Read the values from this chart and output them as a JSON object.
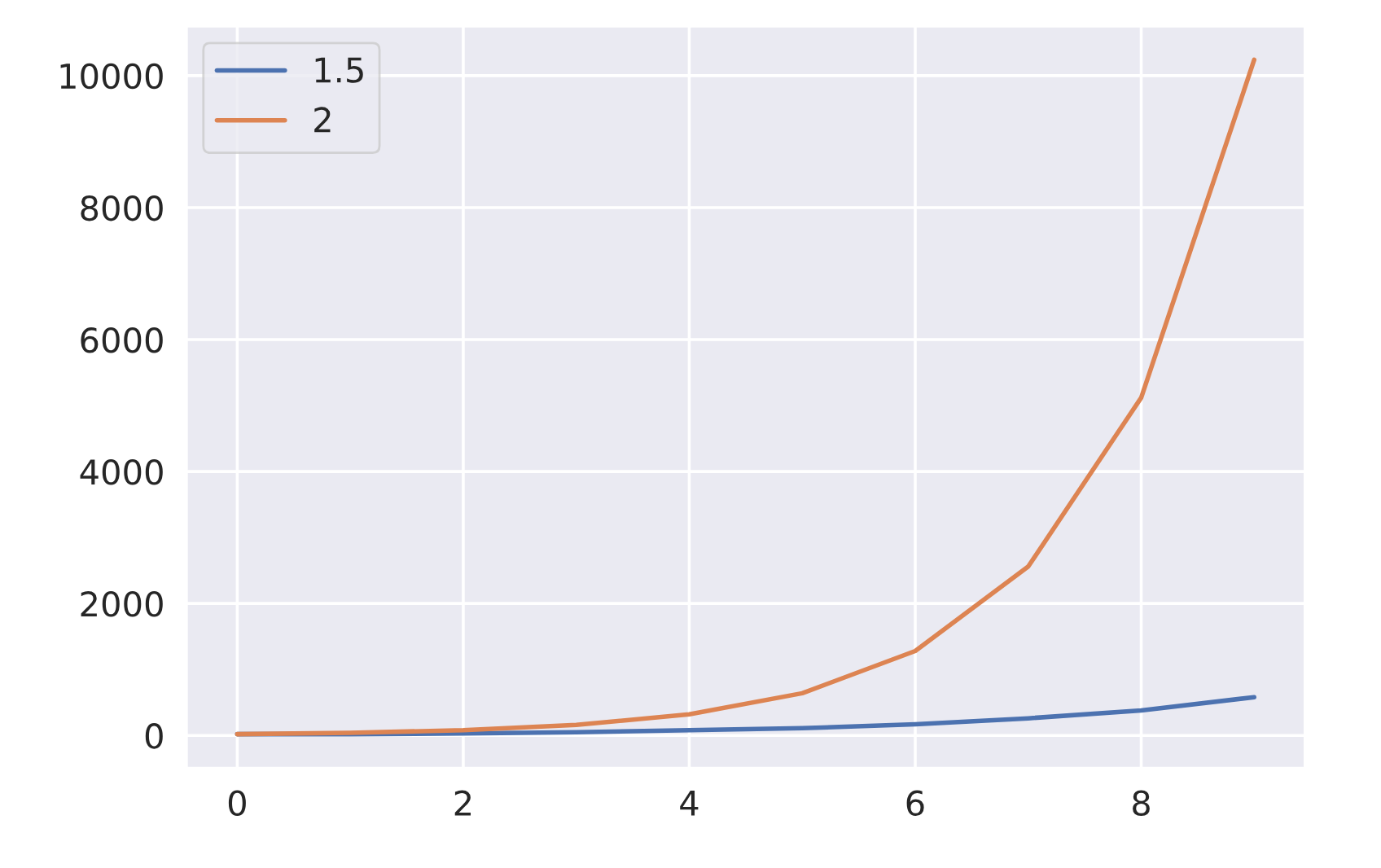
{
  "chart_data": {
    "type": "line",
    "x": [
      0,
      1,
      2,
      3,
      4,
      5,
      6,
      7,
      8,
      9
    ],
    "series": [
      {
        "name": "1.5",
        "color": "#4c72b0",
        "values": [
          20,
          20,
          30,
          50,
          80,
          110,
          170,
          260,
          380,
          580
        ]
      },
      {
        "name": "2",
        "color": "#dd8452",
        "values": [
          20,
          40,
          80,
          160,
          320,
          640,
          1280,
          2560,
          5120,
          10240
        ]
      }
    ],
    "xlim": [
      -0.45,
      9.45
    ],
    "xticks": [
      0,
      2,
      4,
      6,
      8
    ],
    "ylim": [
      -496,
      10752
    ],
    "yticks": [
      0,
      2000,
      4000,
      6000,
      8000,
      10000
    ],
    "grid": true,
    "legend": "top left"
  }
}
